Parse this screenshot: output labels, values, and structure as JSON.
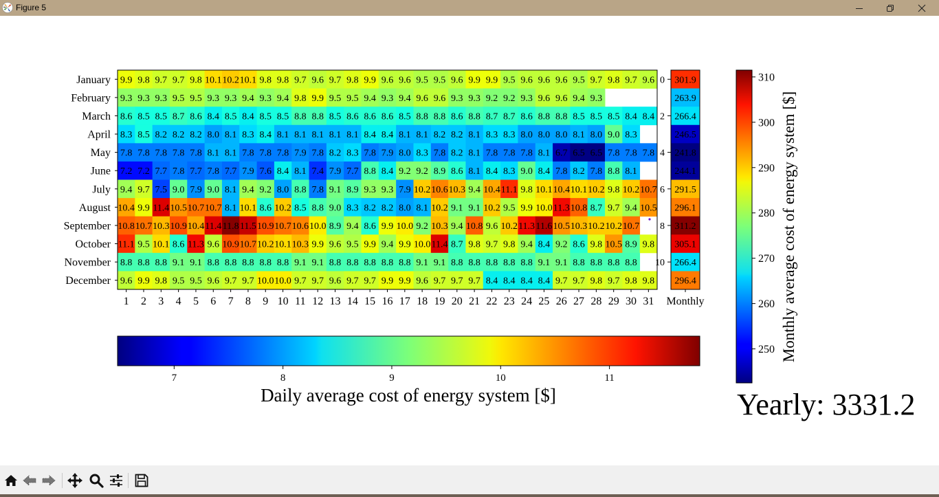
{
  "window": {
    "title": "Figure 5",
    "controls": [
      "minimize-icon",
      "restore-icon",
      "close-icon"
    ]
  },
  "toolbar": {
    "buttons": [
      {
        "name": "home",
        "icon": "home-icon"
      },
      {
        "name": "back",
        "icon": "arrow-left-icon"
      },
      {
        "name": "forward",
        "icon": "arrow-right-icon"
      },
      {
        "name": "pan",
        "icon": "move-icon"
      },
      {
        "name": "zoom",
        "icon": "magnifier-icon"
      },
      {
        "name": "configure-subplots",
        "icon": "sliders-icon"
      },
      {
        "name": "save",
        "icon": "floppy-disk-icon"
      }
    ]
  },
  "yearly_label": "Yearly: 3331.2",
  "chart_data": {
    "type": "heatmap",
    "colormap": "jet",
    "months": [
      "January",
      "February",
      "March",
      "April",
      "May",
      "June",
      "July",
      "August",
      "September",
      "October",
      "November",
      "December"
    ],
    "days": [
      "1",
      "2",
      "3",
      "4",
      "5",
      "6",
      "7",
      "8",
      "9",
      "10",
      "11",
      "12",
      "13",
      "14",
      "15",
      "16",
      "17",
      "18",
      "19",
      "20",
      "21",
      "22",
      "23",
      "24",
      "25",
      "26",
      "27",
      "28",
      "29",
      "30",
      "31"
    ],
    "daily_values": [
      [
        9.9,
        9.8,
        9.7,
        9.7,
        9.8,
        10.1,
        10.2,
        10.1,
        9.8,
        9.8,
        9.7,
        9.6,
        9.7,
        9.8,
        9.9,
        9.6,
        9.6,
        9.5,
        9.5,
        9.6,
        9.9,
        9.9,
        9.5,
        9.6,
        9.6,
        9.6,
        9.5,
        9.7,
        9.8,
        9.7,
        9.6
      ],
      [
        9.3,
        9.3,
        9.3,
        9.5,
        9.5,
        9.3,
        9.3,
        9.4,
        9.3,
        9.4,
        9.8,
        9.9,
        9.5,
        9.5,
        9.4,
        9.3,
        9.4,
        9.6,
        9.6,
        9.3,
        9.3,
        9.2,
        9.2,
        9.3,
        9.6,
        9.6,
        9.4,
        9.3,
        null,
        null,
        null
      ],
      [
        8.6,
        8.5,
        8.5,
        8.7,
        8.6,
        8.4,
        8.5,
        8.4,
        8.5,
        8.5,
        8.8,
        8.8,
        8.5,
        8.6,
        8.6,
        8.6,
        8.5,
        8.8,
        8.8,
        8.6,
        8.8,
        8.7,
        8.7,
        8.6,
        8.8,
        8.8,
        8.5,
        8.5,
        8.5,
        8.4,
        8.4
      ],
      [
        8.3,
        8.5,
        8.2,
        8.2,
        8.2,
        8.0,
        8.1,
        8.3,
        8.4,
        8.1,
        8.1,
        8.1,
        8.1,
        8.1,
        8.4,
        8.4,
        8.1,
        8.1,
        8.2,
        8.2,
        8.1,
        8.3,
        8.3,
        8.0,
        8.0,
        8.0,
        8.1,
        8.0,
        9.0,
        8.3,
        null
      ],
      [
        7.8,
        7.8,
        7.8,
        7.8,
        7.8,
        8.1,
        8.1,
        7.8,
        7.8,
        7.8,
        7.9,
        7.8,
        8.2,
        8.3,
        7.8,
        7.9,
        8.0,
        8.3,
        7.8,
        8.2,
        8.1,
        7.8,
        7.8,
        7.8,
        8.1,
        6.7,
        6.5,
        6.5,
        7.8,
        7.8,
        7.8
      ],
      [
        7.2,
        7.2,
        7.7,
        7.8,
        7.7,
        7.8,
        7.7,
        7.9,
        7.6,
        8.4,
        8.1,
        7.4,
        7.9,
        7.7,
        8.8,
        8.4,
        9.2,
        9.2,
        8.9,
        8.6,
        8.1,
        8.4,
        8.3,
        9.0,
        8.4,
        7.8,
        8.2,
        7.8,
        8.8,
        8.1,
        null
      ],
      [
        9.4,
        9.7,
        7.5,
        9.0,
        7.9,
        9.0,
        8.1,
        9.4,
        9.2,
        8.0,
        8.8,
        7.8,
        9.1,
        8.9,
        9.3,
        9.3,
        7.9,
        10.2,
        10.6,
        10.3,
        9.4,
        10.4,
        11.1,
        9.8,
        10.1,
        10.4,
        10.1,
        10.2,
        9.8,
        10.2,
        10.7
      ],
      [
        10.4,
        9.9,
        11.4,
        10.5,
        10.7,
        10.7,
        8.1,
        10.1,
        8.6,
        10.2,
        8.5,
        8.8,
        9.0,
        8.3,
        8.2,
        8.2,
        8.0,
        8.1,
        10.2,
        9.1,
        9.1,
        10.2,
        9.5,
        9.9,
        10.0,
        11.3,
        10.8,
        8.7,
        9.7,
        9.4,
        10.5
      ],
      [
        10.8,
        10.7,
        10.3,
        10.9,
        10.4,
        11.4,
        11.8,
        11.5,
        10.9,
        10.7,
        10.6,
        10.0,
        8.9,
        9.4,
        8.6,
        9.9,
        10.0,
        9.2,
        10.3,
        9.4,
        10.8,
        9.6,
        10.2,
        11.3,
        11.6,
        10.5,
        10.3,
        10.2,
        10.2,
        10.7,
        null
      ],
      [
        11.1,
        9.5,
        10.1,
        8.6,
        11.3,
        9.6,
        10.9,
        10.7,
        10.2,
        10.1,
        10.3,
        9.9,
        9.6,
        9.5,
        9.9,
        9.4,
        9.9,
        10.0,
        11.4,
        8.7,
        9.8,
        9.7,
        9.8,
        9.4,
        8.4,
        9.2,
        8.6,
        9.8,
        10.5,
        8.9,
        9.8
      ],
      [
        8.8,
        8.8,
        8.8,
        9.1,
        9.1,
        8.8,
        8.8,
        8.8,
        8.8,
        8.8,
        9.1,
        9.1,
        8.8,
        8.8,
        8.8,
        8.8,
        8.8,
        9.1,
        9.1,
        8.8,
        8.8,
        8.8,
        8.8,
        8.8,
        9.1,
        9.1,
        8.8,
        8.8,
        8.8,
        8.8,
        null
      ],
      [
        9.6,
        9.9,
        9.8,
        9.5,
        9.5,
        9.6,
        9.7,
        9.7,
        10.0,
        10.0,
        9.7,
        9.7,
        9.6,
        9.7,
        9.7,
        9.9,
        9.9,
        9.6,
        9.7,
        9.7,
        9.7,
        8.4,
        8.4,
        8.4,
        8.4,
        9.7,
        9.7,
        9.8,
        9.7,
        9.8,
        9.8
      ]
    ],
    "daily_range": [
      6.48,
      11.83
    ],
    "monthly_label": "Monthly",
    "monthly_values": [
      301.9,
      263.9,
      266.4,
      246.5,
      241.8,
      244.1,
      291.5,
      296.1,
      311.2,
      305.1,
      266.4,
      296.4
    ],
    "monthly_range": [
      242.5,
      311.5
    ],
    "row_index_ticks": [
      "0",
      "2",
      "4",
      "6",
      "8",
      "10"
    ],
    "daily_colorbar": {
      "label": "Daily average cost of energy system [$]",
      "ticks": [
        7,
        8,
        9,
        10,
        11
      ],
      "orientation": "horizontal"
    },
    "monthly_colorbar": {
      "label": "Monthly average cost of energy system [$]",
      "ticks": [
        250,
        260,
        270,
        280,
        290,
        300,
        310
      ],
      "orientation": "vertical"
    }
  }
}
